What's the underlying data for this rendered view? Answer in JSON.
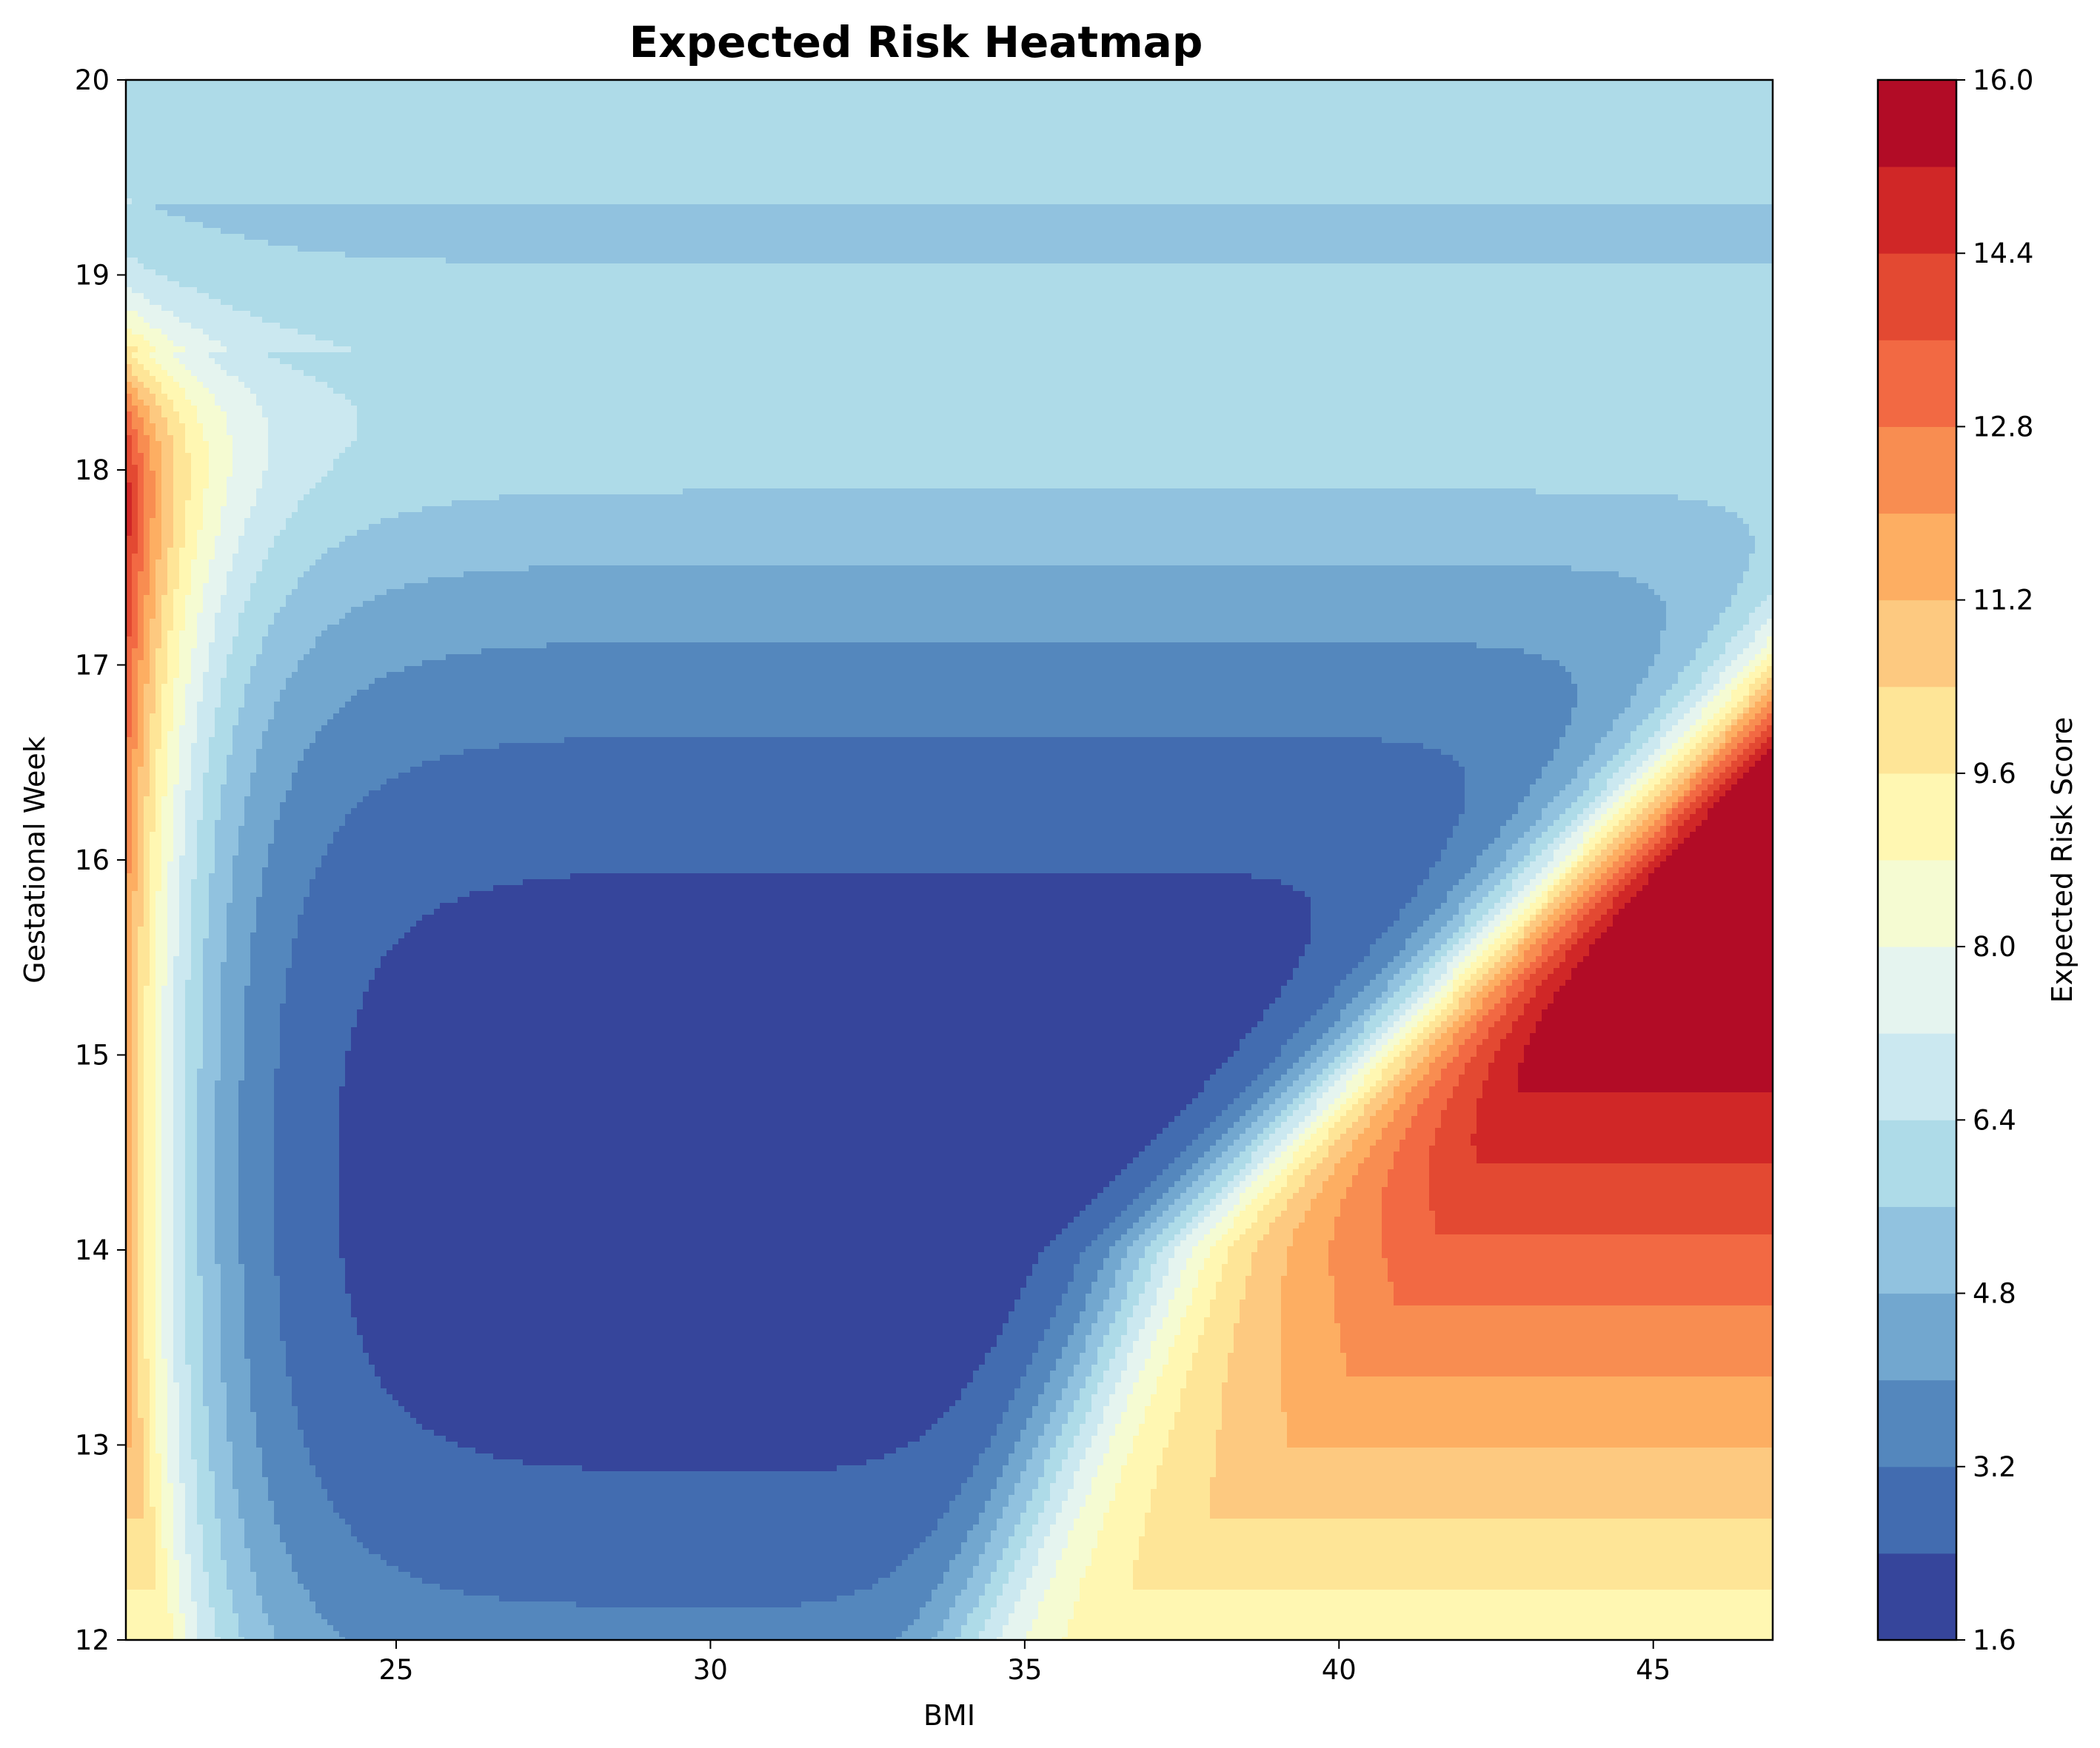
{
  "chart_data": {
    "type": "heatmap",
    "subtype": "filled-contour",
    "title": "Expected Risk Heatmap",
    "xlabel": "BMI",
    "ylabel": "Gestational Week",
    "xlim": [
      20.7,
      46.9
    ],
    "ylim": [
      12,
      20
    ],
    "xticks": [
      25,
      30,
      35,
      40,
      45
    ],
    "yticks": [
      12,
      13,
      14,
      15,
      16,
      17,
      18,
      19,
      20
    ],
    "colorbar": {
      "label": "Expected Risk Score",
      "range": [
        1.6,
        16.0
      ],
      "ticks": [
        "1.6",
        "3.2",
        "4.8",
        "6.4",
        "8.0",
        "9.6",
        "11.2",
        "12.8",
        "14.4",
        "16.0"
      ],
      "levels": [
        1.6,
        2.4,
        3.2,
        4.0,
        4.8,
        5.6,
        6.4,
        7.2,
        8.0,
        8.8,
        9.6,
        10.4,
        11.2,
        12.0,
        12.8,
        13.6,
        14.4,
        15.2,
        16.0
      ],
      "colors": [
        "#36459b",
        "#426cb0",
        "#5487bd",
        "#72a7cf",
        "#91c2df",
        "#aedbe8",
        "#cbe8f0",
        "#e5f4ef",
        "#f5fbd2",
        "#fff7b2",
        "#fee597",
        "#fdc980",
        "#fdae62",
        "#f88d51",
        "#f26943",
        "#e34932",
        "#d02727",
        "#b20c26"
      ]
    },
    "colormap": "RdYlBu_r",
    "grid": false
  }
}
